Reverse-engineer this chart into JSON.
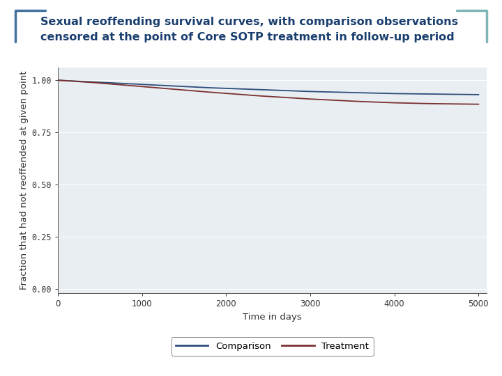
{
  "title_line1": "Sexual reoffending survival curves, with comparison observations",
  "title_line2": "censored at the point of Core SOTP treatment in follow-up period",
  "title_color": "#1A3F6F",
  "title_fontsize": 11.5,
  "title_fontweight": "bold",
  "bg_outer": "#FFFFFF",
  "bg_slide": "#DDE8EE",
  "bg_plot": "#E8EEF2",
  "xlabel": "Time in days",
  "ylabel": "Fraction that had not reoffended at given point",
  "yticks": [
    0.0,
    0.25,
    0.5,
    0.75,
    1.0
  ],
  "ytick_labels": [
    "0.00",
    "0.25",
    "0.50",
    "0.75",
    "1.00"
  ],
  "xticks": [
    0,
    1000,
    2000,
    3000,
    4000,
    5000
  ],
  "xlim": [
    0,
    5100
  ],
  "ylim": [
    -0.02,
    1.06
  ],
  "comparison_color": "#2E4D7B",
  "treatment_color": "#7B3030",
  "comparison_x": [
    0,
    150,
    300,
    450,
    600,
    750,
    900,
    1050,
    1200,
    1350,
    1500,
    1650,
    1800,
    2000,
    2200,
    2400,
    2600,
    2800,
    3000,
    3200,
    3400,
    3600,
    3800,
    4000,
    4200,
    4400,
    4600,
    4800,
    5000
  ],
  "comparison_y": [
    1.0,
    0.997,
    0.994,
    0.991,
    0.988,
    0.985,
    0.982,
    0.979,
    0.976,
    0.973,
    0.97,
    0.967,
    0.964,
    0.961,
    0.958,
    0.955,
    0.952,
    0.949,
    0.946,
    0.944,
    0.942,
    0.94,
    0.938,
    0.936,
    0.935,
    0.934,
    0.933,
    0.932,
    0.931
  ],
  "treatment_x": [
    0,
    150,
    300,
    450,
    600,
    750,
    900,
    1050,
    1200,
    1350,
    1500,
    1650,
    1800,
    2000,
    2200,
    2400,
    2600,
    2800,
    3000,
    3200,
    3400,
    3600,
    3800,
    4000,
    4200,
    4400,
    4600,
    4800,
    5000
  ],
  "treatment_y": [
    1.0,
    0.996,
    0.992,
    0.988,
    0.983,
    0.978,
    0.973,
    0.968,
    0.963,
    0.958,
    0.953,
    0.948,
    0.943,
    0.937,
    0.931,
    0.925,
    0.92,
    0.915,
    0.91,
    0.906,
    0.902,
    0.898,
    0.895,
    0.892,
    0.89,
    0.888,
    0.887,
    0.886,
    0.885
  ],
  "legend_labels": [
    "Comparison",
    "Treatment"
  ],
  "line_width": 1.3,
  "grid_color": "#FFFFFF",
  "tick_fontsize": 8.5,
  "label_fontsize": 9.5,
  "bracket_color_left": "#4472A0",
  "bracket_color_right": "#7FB5B5"
}
